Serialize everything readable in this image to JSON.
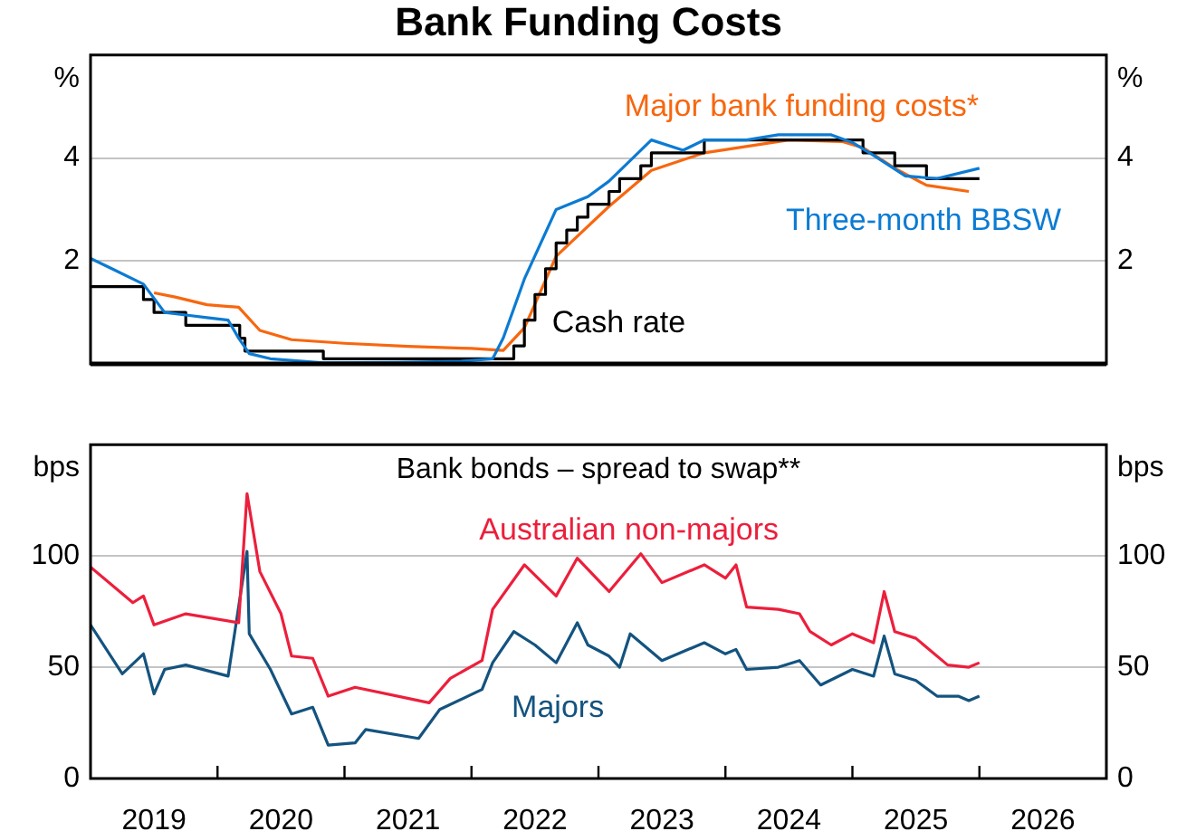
{
  "chart_data": [
    {
      "type": "line",
      "title": "Bank Funding Costs",
      "ylabel": "%",
      "y2label": "%",
      "xlim": [
        "2019-01",
        "2027-01"
      ],
      "ylim": [
        0,
        6
      ],
      "yticks": [
        2,
        4
      ],
      "y2lim": [
        0,
        6
      ],
      "y2ticks": [
        2,
        4
      ],
      "grid": "y",
      "tick_labels": "y",
      "series": [
        {
          "name": "Three-month BBSW",
          "color": "#0b7bd3",
          "x": [
            "2019-01",
            "2019-03",
            "2019-06",
            "2019-08",
            "2019-10",
            "2019-12",
            "2020-02",
            "2020-03",
            "2020-04",
            "2020-06",
            "2020-11",
            "2021-06",
            "2021-12",
            "2022-03",
            "2022-04",
            "2022-06",
            "2022-09",
            "2022-12",
            "2023-02",
            "2023-06",
            "2023-09",
            "2023-11",
            "2024-03",
            "2024-06",
            "2024-11",
            "2025-01",
            "2025-03",
            "2025-06",
            "2025-09",
            "2026-01"
          ],
          "values": [
            2.05,
            1.85,
            1.55,
            1.0,
            0.95,
            0.9,
            0.85,
            0.5,
            0.2,
            0.1,
            0.02,
            0.03,
            0.05,
            0.1,
            0.5,
            1.65,
            3.0,
            3.25,
            3.55,
            4.35,
            4.15,
            4.35,
            4.35,
            4.45,
            4.45,
            4.3,
            4.05,
            3.65,
            3.6,
            3.8
          ]
        },
        {
          "name": "Cash rate",
          "type": "step",
          "color": "#000000",
          "x": [
            "2019-01",
            "2019-06",
            "2019-07",
            "2019-10",
            "2020-03-04",
            "2020-03-19",
            "2020-11",
            "2022-05",
            "2022-06",
            "2022-07",
            "2022-08",
            "2022-09",
            "2022-10",
            "2022-11",
            "2022-12",
            "2023-02",
            "2023-03",
            "2023-05",
            "2023-06",
            "2023-11",
            "2025-02",
            "2025-05",
            "2025-08",
            "2026-01"
          ],
          "values": [
            1.5,
            1.25,
            1.0,
            0.75,
            0.5,
            0.25,
            0.1,
            0.35,
            0.85,
            1.35,
            1.85,
            2.35,
            2.6,
            2.85,
            3.1,
            3.35,
            3.6,
            3.85,
            4.1,
            4.35,
            4.1,
            3.85,
            3.6,
            3.6
          ]
        },
        {
          "name": "Major bank funding costs*",
          "color": "#f7670f",
          "x": [
            "2019-07",
            "2019-09",
            "2019-12",
            "2020-03",
            "2020-05",
            "2020-08",
            "2021-01",
            "2021-07",
            "2022-01",
            "2022-04",
            "2022-06",
            "2022-09",
            "2023-02",
            "2023-06",
            "2023-11",
            "2024-07",
            "2024-12",
            "2025-02",
            "2025-05",
            "2025-08",
            "2025-12"
          ],
          "values": [
            1.38,
            1.3,
            1.15,
            1.1,
            0.65,
            0.47,
            0.4,
            0.34,
            0.3,
            0.26,
            0.7,
            2.09,
            3.06,
            3.76,
            4.1,
            4.35,
            4.32,
            4.2,
            3.8,
            3.47,
            3.35
          ]
        }
      ]
    },
    {
      "type": "line",
      "title": "Bank bonds – spread to swap**",
      "ylabel": "bps",
      "y2label": "bps",
      "xlim": [
        "2019-01",
        "2027-01"
      ],
      "ylim": [
        0,
        150
      ],
      "yticks": [
        0,
        50,
        100
      ],
      "y2lim": [
        0,
        150
      ],
      "y2ticks": [
        0,
        50,
        100
      ],
      "grid": "y",
      "xticks": [
        {
          "value": "2019-07",
          "label": "2019"
        },
        {
          "value": "2020",
          "label": null
        },
        {
          "value": "2020-07",
          "label": "2020"
        },
        {
          "value": "2021",
          "label": null
        },
        {
          "value": "2021-07",
          "label": "2021"
        },
        {
          "value": "2022",
          "label": null
        },
        {
          "value": "2022-07",
          "label": "2022"
        },
        {
          "value": "2023",
          "label": null
        },
        {
          "value": "2023-07",
          "label": "2023"
        },
        {
          "value": "2024",
          "label": null
        },
        {
          "value": "2024-07",
          "label": "2024"
        },
        {
          "value": "2025",
          "label": null
        },
        {
          "value": "2025-07",
          "label": "2025"
        },
        {
          "value": "2026",
          "label": null
        },
        {
          "value": "2026-07",
          "label": "2026"
        }
      ],
      "series": [
        {
          "name": "Australian non-majors",
          "color": "#ec1f3c",
          "x": [
            "2019-01",
            "2019-05",
            "2019-06",
            "2019-07",
            "2019-10",
            "2020-03-01",
            "2020-03-25",
            "2020-05",
            "2020-07",
            "2020-08",
            "2020-10",
            "2020-11-15",
            "2021-02",
            "2021-09",
            "2021-11",
            "2022-02",
            "2022-03",
            "2022-06",
            "2022-09",
            "2022-11",
            "2023-02",
            "2023-05",
            "2023-07",
            "2023-11",
            "2024-01",
            "2024-02",
            "2024-03",
            "2024-06",
            "2024-08",
            "2024-09",
            "2024-11",
            "2025-01",
            "2025-03",
            "2025-04",
            "2025-05",
            "2025-07",
            "2025-10",
            "2025-12",
            "2026-01"
          ],
          "values": [
            95,
            79,
            82,
            69,
            74,
            70,
            128,
            93,
            74,
            55,
            54,
            37,
            41,
            34,
            45,
            53,
            76,
            96,
            82,
            99,
            84,
            101,
            88,
            96,
            90,
            96,
            77,
            76,
            74,
            66,
            60,
            65,
            61,
            84,
            66,
            63,
            51,
            50,
            52
          ]
        },
        {
          "name": "Majors",
          "color": "#14537f",
          "x": [
            "2019-01",
            "2019-04",
            "2019-06",
            "2019-07",
            "2019-08",
            "2019-10",
            "2020-02",
            "2020-03-25",
            "2020-04",
            "2020-06",
            "2020-08",
            "2020-10",
            "2020-11-15",
            "2021-02",
            "2021-03",
            "2021-08",
            "2021-10",
            "2022-02",
            "2022-03",
            "2022-05",
            "2022-07",
            "2022-09",
            "2022-11",
            "2022-12",
            "2023-02",
            "2023-03",
            "2023-04",
            "2023-07",
            "2023-11",
            "2024-01",
            "2024-02",
            "2024-03",
            "2024-06",
            "2024-08",
            "2024-10",
            "2025-01",
            "2025-03",
            "2025-04",
            "2025-05",
            "2025-07",
            "2025-09",
            "2025-11",
            "2025-12",
            "2026-01"
          ],
          "values": [
            69,
            47,
            56,
            38,
            49,
            51,
            46,
            102,
            65,
            49,
            29,
            32,
            15,
            16,
            22,
            18,
            31,
            40,
            52,
            66,
            60,
            52,
            70,
            60,
            55,
            50,
            65,
            53,
            61,
            56,
            58,
            49,
            50,
            53,
            42,
            49,
            46,
            64,
            47,
            44,
            37,
            37,
            35,
            37
          ]
        }
      ]
    }
  ]
}
